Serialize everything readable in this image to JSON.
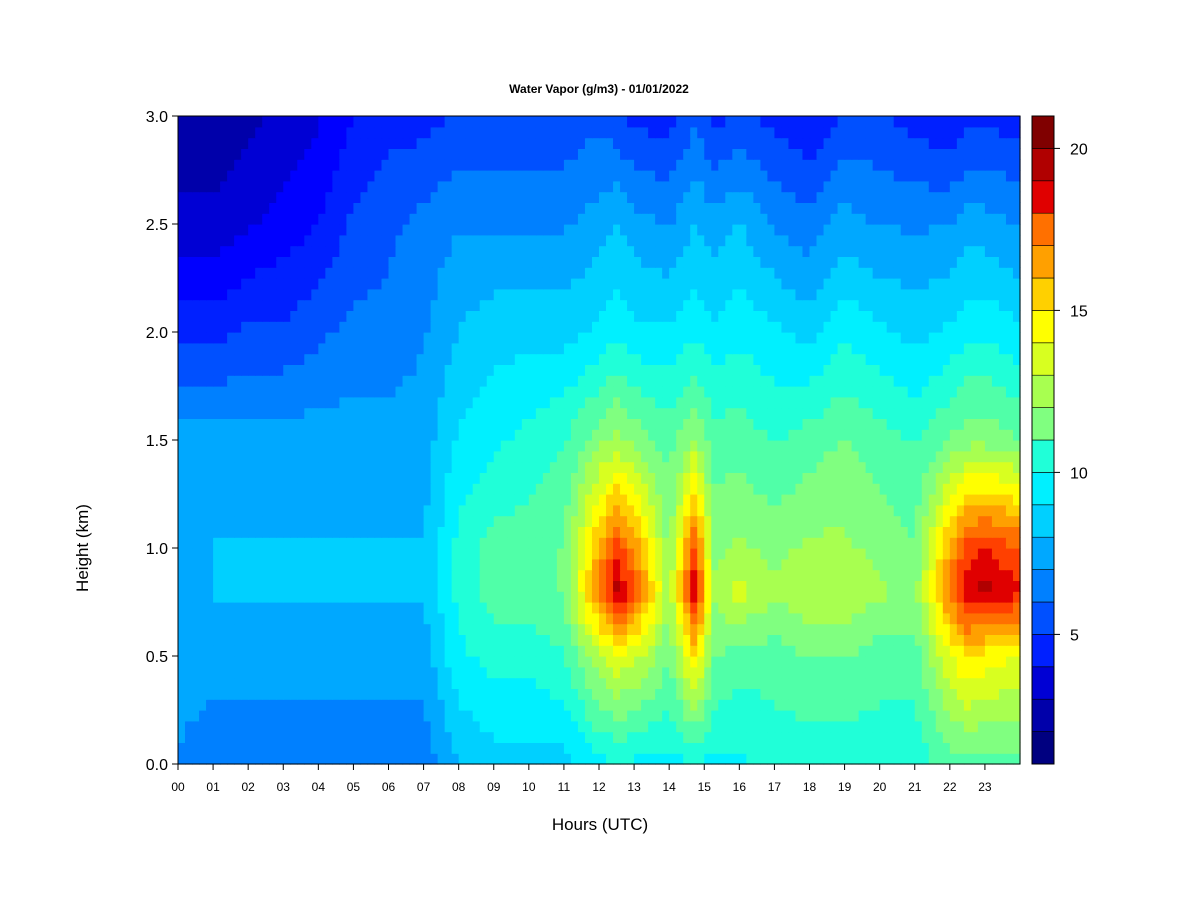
{
  "chart_data": {
    "type": "heatmap",
    "title": "Water Vapor (g/m3) - 01/01/2022",
    "xlabel": "Hours (UTC)",
    "ylabel": "Height (km)",
    "xlim": [
      0,
      24
    ],
    "ylim": [
      0,
      3
    ],
    "x_ticks": [
      "00",
      "01",
      "02",
      "03",
      "04",
      "05",
      "06",
      "07",
      "08",
      "09",
      "10",
      "11",
      "12",
      "13",
      "14",
      "15",
      "16",
      "17",
      "18",
      "19",
      "20",
      "21",
      "22",
      "23"
    ],
    "y_ticks": [
      "0.0",
      "0.5",
      "1.0",
      "1.5",
      "2.0",
      "2.5",
      "3.0"
    ],
    "colorbar": {
      "range": [
        1,
        21
      ],
      "ticks": [
        "5",
        "10",
        "15",
        "20"
      ],
      "levels": 20,
      "colors": [
        "#000080",
        "#0000AA",
        "#0000D4",
        "#0000FF",
        "#0020FF",
        "#0050FF",
        "#0080FF",
        "#00A8FF",
        "#00D0FF",
        "#00F0FF",
        "#20FFD8",
        "#50FFA8",
        "#80FF80",
        "#A8FF50",
        "#D8FF20",
        "#FFFF00",
        "#FFD000",
        "#FFA000",
        "#FF7000",
        "#FF4000",
        "#E00000",
        "#B00000",
        "#800000"
      ]
    },
    "value_grid": {
      "x_hours": [
        0,
        1,
        2,
        3,
        4,
        5,
        6,
        7,
        8,
        9,
        10,
        11,
        12,
        12.5,
        13,
        14,
        14.75,
        15.25,
        16,
        17,
        18,
        19,
        20,
        21,
        22,
        22.5,
        23,
        24
      ],
      "heights_km": [
        0.0,
        0.5,
        0.8,
        1.0,
        1.5,
        2.0,
        2.5,
        3.0
      ],
      "values": [
        [
          7.0,
          6.5,
          6.5,
          6.5,
          6.5,
          6.5,
          6.5,
          6.5,
          8.0,
          8.5,
          8.5,
          8.5,
          9.5,
          9.5,
          9.5,
          9.5,
          9.5,
          9.5,
          9.5,
          10.0,
          10.0,
          10.0,
          10.0,
          10.0,
          11.0,
          11.0,
          11.0,
          11.0
        ],
        [
          7.5,
          7.5,
          7.5,
          7.5,
          7.5,
          7.5,
          7.5,
          7.5,
          9.5,
          10.0,
          10.0,
          10.5,
          13.0,
          14.0,
          13.5,
          11.5,
          15.0,
          11.5,
          11.0,
          11.0,
          11.5,
          11.5,
          11.0,
          11.0,
          14.0,
          15.0,
          14.5,
          14.0
        ],
        [
          7.5,
          8.0,
          8.0,
          8.0,
          8.0,
          8.0,
          8.0,
          8.0,
          10.0,
          11.0,
          11.0,
          11.5,
          17.0,
          19.5,
          18.0,
          12.5,
          19.5,
          12.5,
          13.5,
          12.5,
          13.0,
          13.0,
          12.5,
          12.0,
          17.0,
          19.0,
          19.5,
          18.5
        ],
        [
          7.5,
          8.0,
          8.0,
          8.0,
          8.0,
          8.0,
          8.0,
          8.0,
          10.0,
          11.0,
          11.0,
          11.5,
          16.0,
          18.0,
          16.5,
          12.0,
          18.0,
          12.0,
          12.5,
          12.0,
          12.5,
          12.5,
          12.0,
          11.5,
          16.0,
          18.0,
          18.5,
          17.5
        ],
        [
          7.5,
          7.5,
          7.5,
          7.5,
          7.5,
          7.5,
          7.5,
          7.5,
          9.0,
          9.5,
          10.0,
          10.5,
          12.0,
          12.5,
          12.0,
          11.0,
          12.5,
          11.0,
          11.0,
          10.5,
          11.0,
          11.5,
          11.0,
          10.5,
          11.5,
          12.0,
          12.0,
          11.5
        ],
        [
          5.0,
          5.0,
          5.5,
          5.5,
          6.0,
          6.5,
          6.5,
          7.0,
          8.0,
          8.5,
          8.5,
          8.5,
          9.0,
          9.5,
          9.0,
          9.0,
          9.5,
          9.0,
          9.5,
          9.0,
          8.5,
          9.5,
          9.0,
          8.5,
          9.0,
          9.5,
          9.5,
          9.0
        ],
        [
          3.0,
          3.0,
          3.5,
          4.0,
          4.5,
          5.5,
          6.0,
          6.5,
          7.0,
          7.0,
          7.0,
          7.0,
          7.5,
          8.0,
          7.5,
          7.0,
          8.0,
          7.5,
          8.0,
          7.0,
          6.5,
          7.5,
          7.0,
          7.0,
          7.0,
          7.5,
          7.5,
          7.0
        ],
        [
          2.0,
          2.0,
          2.5,
          3.0,
          3.5,
          4.5,
          5.0,
          5.0,
          5.5,
          5.5,
          5.5,
          5.5,
          6.0,
          5.5,
          5.0,
          5.0,
          6.0,
          5.0,
          5.5,
          5.0,
          4.5,
          5.5,
          5.5,
          5.0,
          4.5,
          5.0,
          5.0,
          5.0
        ]
      ]
    }
  }
}
